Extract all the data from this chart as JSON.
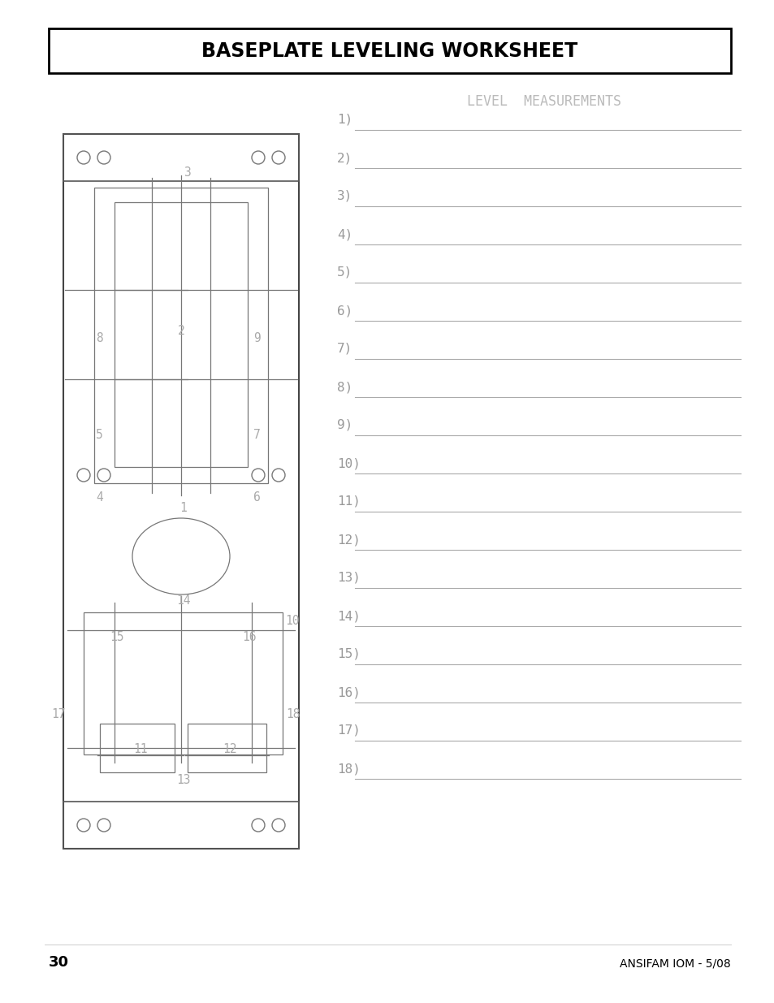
{
  "title": "BASEPLATE LEVELING WORKSHEET",
  "level_measurements_label": "LEVEL  MEASUREMENTS",
  "measurements": [
    "1)",
    "2)",
    "3)",
    "4)",
    "5)",
    "6)",
    "7)",
    "8)",
    "9)",
    "10)",
    "11)",
    "12)",
    "13)",
    "14)",
    "15)",
    "16)",
    "17)",
    "18)"
  ],
  "page_number": "30",
  "footer_right": "ANSIFAM IOM - 5/08",
  "bg_color": "#ffffff",
  "line_color": "#000000",
  "diagram_color": "#777777",
  "text_color": "#aaaaaa",
  "meas_text_color": "#999999",
  "meas_line_color": "#aaaaaa"
}
